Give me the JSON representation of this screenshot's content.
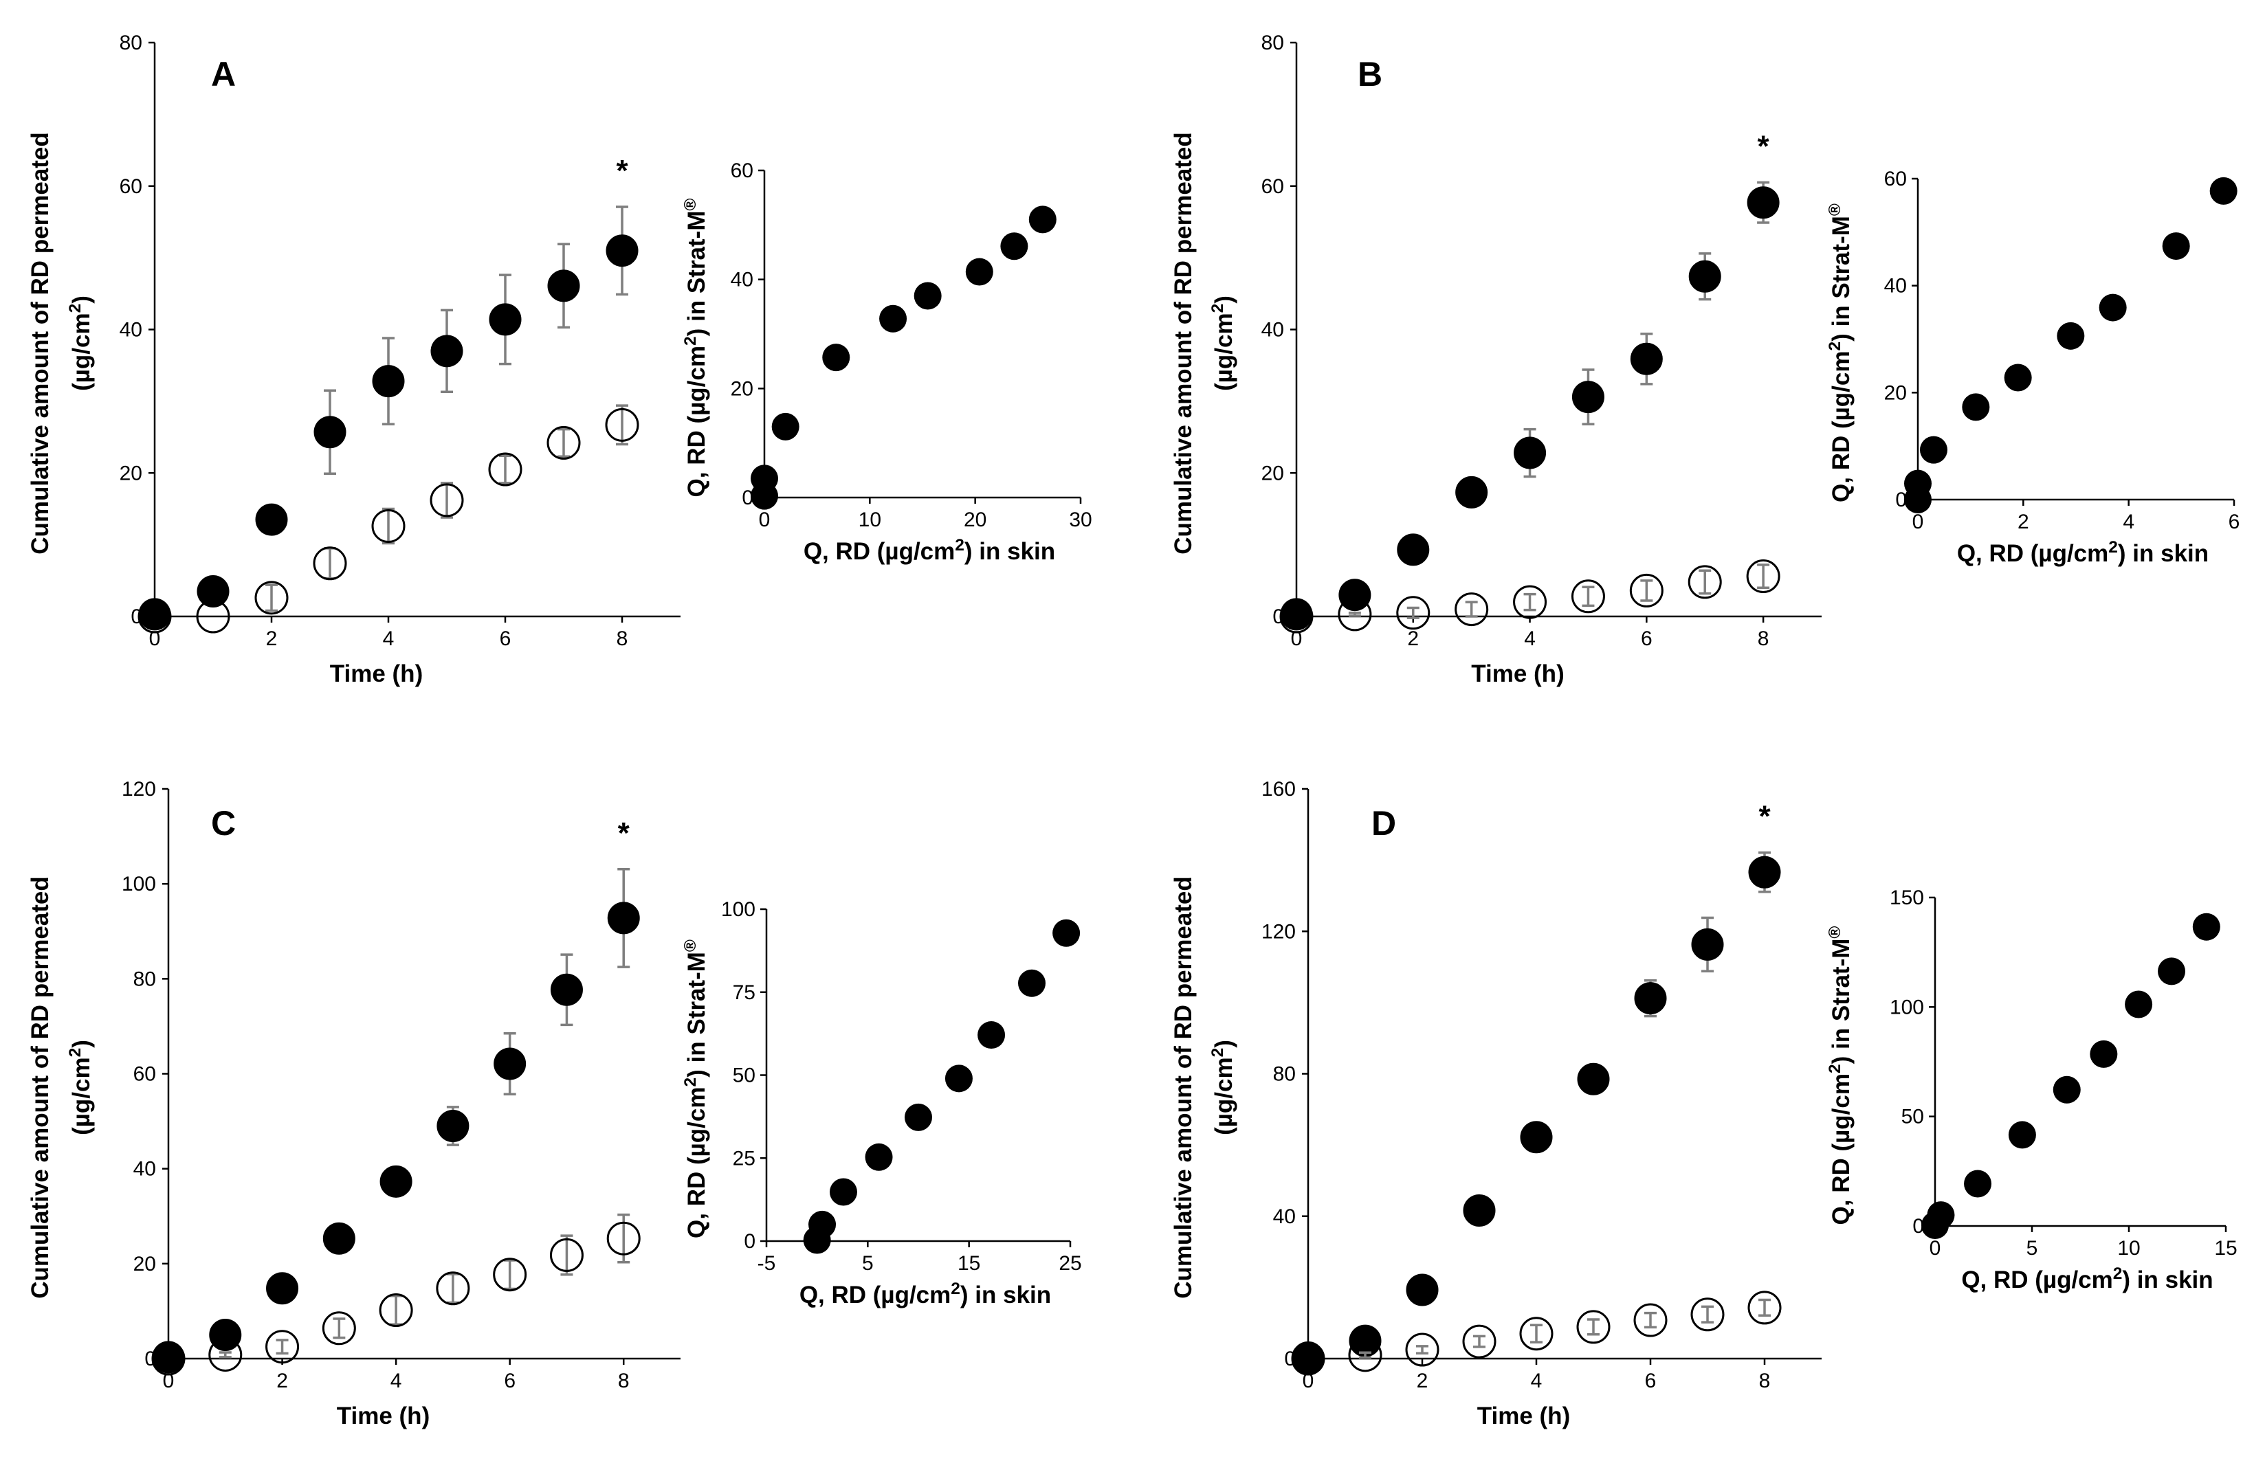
{
  "chart_data": [
    {
      "type": "scatter",
      "panel": "A",
      "title": "A",
      "annotation": "*",
      "xlabel": "Time (h)",
      "ylabel": "Cumulative amount of RD permeated (µg/cm²)",
      "ylabel_line1": "Cumulative amount of RD permeated",
      "ylabel_line2": "(µg/cm²)",
      "xlim": [
        0,
        9
      ],
      "ylim": [
        0,
        80
      ],
      "xticks": [
        0,
        2,
        4,
        6,
        8
      ],
      "yticks": [
        0,
        20,
        40,
        60,
        80
      ],
      "series": [
        {
          "name": "filled",
          "style": "filled",
          "x": [
            0,
            1,
            2,
            3,
            4,
            5,
            6,
            7,
            8
          ],
          "y": [
            0.3,
            3.5,
            13.5,
            25.7,
            32.8,
            37,
            41.4,
            46.1,
            51
          ],
          "err": [
            0,
            0.8,
            1.6,
            5.8,
            6,
            5.7,
            6.2,
            5.8,
            6.1
          ]
        },
        {
          "name": "open",
          "style": "open",
          "x": [
            0,
            1,
            2,
            3,
            4,
            5,
            6,
            7,
            8
          ],
          "y": [
            0,
            0,
            2.6,
            7.4,
            12.6,
            16.2,
            20.5,
            24.2,
            26.7
          ],
          "err": [
            0,
            0,
            1.8,
            2.1,
            2.4,
            2.4,
            1.9,
            1.9,
            2.7
          ]
        }
      ],
      "inset": {
        "type": "scatter",
        "xlabel": "Q, RD (µg/cm²) in skin",
        "ylabel": "Q, RD (µg/cm²) in Strat-M®",
        "xlim": [
          0,
          30
        ],
        "ylim": [
          0,
          60
        ],
        "xticks": [
          0,
          10,
          20,
          30
        ],
        "yticks": [
          0,
          20,
          40,
          60
        ],
        "x": [
          0,
          0,
          2,
          6.8,
          12.2,
          15.5,
          20.4,
          23.7,
          26.4
        ],
        "y": [
          0.3,
          3.5,
          13,
          25.7,
          32.8,
          37,
          41.4,
          46.1,
          51
        ]
      }
    },
    {
      "type": "scatter",
      "panel": "B",
      "title": "B",
      "annotation": "*",
      "xlabel": "Time (h)",
      "ylabel": "Cumulative amount of RD permeated (µg/cm²)",
      "ylabel_line1": "Cumulative amount of RD permeated",
      "ylabel_line2": "(µg/cm²)",
      "xlim": [
        0,
        9
      ],
      "ylim": [
        0,
        80
      ],
      "xticks": [
        0,
        2,
        4,
        6,
        8
      ],
      "yticks": [
        0,
        20,
        40,
        60,
        80
      ],
      "series": [
        {
          "name": "filled",
          "style": "filled",
          "x": [
            0,
            1,
            2,
            3,
            4,
            5,
            6,
            7,
            8
          ],
          "y": [
            0.3,
            3,
            9.3,
            17.3,
            22.8,
            30.6,
            35.9,
            47.4,
            57.7
          ],
          "err": [
            0,
            0.5,
            1,
            1.4,
            3.3,
            3.8,
            3.5,
            3.2,
            2.8
          ]
        },
        {
          "name": "open",
          "style": "open",
          "x": [
            0,
            1,
            2,
            3,
            4,
            5,
            6,
            7,
            8
          ],
          "y": [
            0,
            0.3,
            0.5,
            1,
            2,
            2.8,
            3.6,
            4.8,
            5.6
          ],
          "err": [
            0,
            0.2,
            0.7,
            1,
            1.1,
            1.3,
            1.4,
            1.6,
            1.6
          ]
        }
      ],
      "inset": {
        "type": "scatter",
        "xlabel": "Q, RD (µg/cm²) in skin",
        "ylabel": "Q, RD (µg/cm²) in Strat-M®",
        "xlim": [
          0,
          6
        ],
        "ylim": [
          0,
          60
        ],
        "xticks": [
          0,
          2,
          4,
          6
        ],
        "yticks": [
          0,
          20,
          40,
          60
        ],
        "x": [
          0,
          0,
          0.3,
          1.1,
          1.9,
          2.9,
          3.7,
          4.9,
          5.8
        ],
        "y": [
          0,
          3,
          9.3,
          17.3,
          22.8,
          30.6,
          35.9,
          47.4,
          57.7
        ]
      }
    },
    {
      "type": "scatter",
      "panel": "C",
      "title": "C",
      "annotation": "*",
      "xlabel": "Time (h)",
      "ylabel": "Cumulative amount of RD permeated (µg/cm²)",
      "ylabel_line1": "Cumulative amount of RD permeated",
      "ylabel_line2": "(µg/cm²)",
      "xlim": [
        0,
        9
      ],
      "ylim": [
        0,
        120
      ],
      "xticks": [
        0,
        2,
        4,
        6,
        8
      ],
      "yticks": [
        0,
        20,
        40,
        60,
        80,
        100,
        120
      ],
      "series": [
        {
          "name": "filled",
          "style": "filled",
          "x": [
            0,
            1,
            2,
            3,
            4,
            5,
            6,
            7,
            8
          ],
          "y": [
            0.3,
            5,
            14.8,
            25.3,
            37.3,
            49,
            62.1,
            77.7,
            92.8
          ],
          "err": [
            0,
            0.8,
            1.3,
            1.3,
            1.8,
            4,
            6.4,
            7.4,
            10.3
          ]
        },
        {
          "name": "open",
          "style": "open",
          "x": [
            0,
            1,
            2,
            3,
            4,
            5,
            6,
            7,
            8
          ],
          "y": [
            0,
            0.8,
            2.5,
            6.4,
            10.2,
            14.8,
            17.7,
            21.8,
            25.3
          ],
          "err": [
            0,
            0.5,
            1.4,
            2,
            3,
            3,
            3,
            4.1,
            5
          ]
        }
      ],
      "inset": {
        "type": "scatter",
        "xlabel": "Q, RD (µg/cm²) in skin",
        "ylabel": "Q, RD (µg/cm²) in Strat-M®",
        "xlim": [
          -5,
          25
        ],
        "ylim": [
          0,
          100
        ],
        "xticks": [
          -5,
          5,
          15,
          25
        ],
        "yticks": [
          0,
          25,
          50,
          75,
          100
        ],
        "x": [
          0,
          0.5,
          2.6,
          6.1,
          10,
          14,
          17.2,
          21.2,
          24.6
        ],
        "y": [
          0.3,
          5,
          14.8,
          25.3,
          37.3,
          49,
          62.1,
          77.7,
          92.8
        ]
      }
    },
    {
      "type": "scatter",
      "panel": "D",
      "title": "D",
      "annotation": "*",
      "xlabel": "Time (h)",
      "ylabel": "Cumulative amount of RD permeated (µg/cm²)",
      "ylabel_line1": "Cumulative amount of RD permeated",
      "ylabel_line2": "(µg/cm²)",
      "xlim": [
        0,
        9
      ],
      "ylim": [
        0,
        160
      ],
      "xticks": [
        0,
        2,
        4,
        6,
        8
      ],
      "yticks": [
        0,
        40,
        80,
        120,
        160
      ],
      "series": [
        {
          "name": "filled",
          "style": "filled",
          "x": [
            0,
            1,
            2,
            3,
            4,
            5,
            6,
            7,
            8
          ],
          "y": [
            0.3,
            5,
            19.3,
            41.6,
            62.2,
            78.5,
            101.2,
            116.3,
            136.6
          ],
          "err": [
            0,
            1,
            1.7,
            2.1,
            3.8,
            3,
            5,
            7.5,
            5.5
          ]
        },
        {
          "name": "open",
          "style": "open",
          "x": [
            0,
            1,
            2,
            3,
            4,
            5,
            6,
            7,
            8
          ],
          "y": [
            0,
            1,
            2.5,
            4.8,
            7,
            8.9,
            10.8,
            12.4,
            14.3
          ],
          "err": [
            0,
            0.7,
            1,
            1.5,
            2.4,
            2.1,
            2,
            2.2,
            2.2
          ]
        }
      ],
      "inset": {
        "type": "scatter",
        "xlabel": "Q, RD (µg/cm²) in skin",
        "ylabel": "Q, RD (µg/cm²) in Strat-M®",
        "xlim": [
          0,
          15
        ],
        "ylim": [
          0,
          150
        ],
        "xticks": [
          0,
          5,
          10,
          15
        ],
        "yticks": [
          0,
          50,
          100,
          150
        ],
        "x": [
          0,
          0.3,
          2.2,
          4.5,
          6.8,
          8.7,
          10.5,
          12.2,
          14
        ],
        "y": [
          0.3,
          5,
          19.3,
          41.6,
          62.2,
          78.5,
          101.2,
          116.3,
          136.6
        ]
      }
    }
  ]
}
